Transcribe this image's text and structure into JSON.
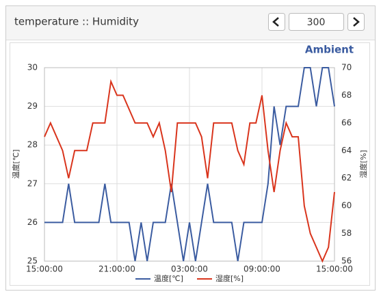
{
  "header": {
    "title": "temperature :: Humidity",
    "window": 300
  },
  "chart_data": {
    "type": "line",
    "title": "Ambient",
    "y_label": "温度[℃]",
    "y2_label": "湿度[%]",
    "x": [
      0,
      0.5,
      1,
      1.5,
      2,
      2.5,
      3,
      3.5,
      4,
      4.5,
      5,
      5.5,
      6,
      6.5,
      7,
      7.5,
      8,
      8.5,
      9,
      9.5,
      10,
      10.5,
      11,
      11.5,
      12,
      12.5,
      13,
      13.5,
      14,
      14.5,
      15,
      15.5,
      16,
      16.5,
      17,
      17.5,
      18,
      18.5,
      19,
      19.5,
      20,
      20.5,
      21,
      21.5,
      22,
      22.5,
      23,
      23.5,
      24
    ],
    "xlim": [
      0,
      24
    ],
    "xticks": [
      {
        "value": 0,
        "label": "15:00:00"
      },
      {
        "value": 6,
        "label": "21:00:00"
      },
      {
        "value": 12,
        "label": "03:00:00"
      },
      {
        "value": 18,
        "label": "09:00:00"
      },
      {
        "value": 24,
        "label": "15:00:00"
      }
    ],
    "ylim": [
      25,
      30
    ],
    "yticks": [
      25,
      26,
      27,
      28,
      29,
      30
    ],
    "y2lim": [
      56,
      70
    ],
    "y2ticks": [
      56,
      58,
      60,
      62,
      64,
      66,
      68,
      70
    ],
    "grid": true,
    "legend": "bottom",
    "series": [
      {
        "name": "温度[℃]",
        "color": "#3a5ba0",
        "axis": "y",
        "values": [
          26,
          26,
          26,
          26,
          27,
          26,
          26,
          26,
          26,
          26,
          27,
          26,
          26,
          26,
          26,
          25,
          26,
          25,
          26,
          26,
          26,
          27,
          26,
          25,
          26,
          25,
          26,
          27,
          26,
          26,
          26,
          26,
          25,
          26,
          26,
          26,
          26,
          27,
          29,
          28,
          29,
          29,
          29,
          30,
          30,
          29,
          30,
          30,
          29
        ]
      },
      {
        "name": "湿度[%]",
        "color": "#d9341c",
        "axis": "y2",
        "values": [
          65,
          66,
          65,
          64,
          62,
          64,
          64,
          64,
          66,
          66,
          66,
          69,
          68,
          68,
          67,
          66,
          66,
          66,
          65,
          66,
          64,
          61,
          66,
          66,
          66,
          66,
          65,
          62,
          66,
          66,
          66,
          66,
          64,
          63,
          66,
          66,
          68,
          64,
          61,
          64,
          66,
          65,
          65,
          60,
          58,
          57,
          56,
          57,
          61
        ]
      }
    ]
  }
}
